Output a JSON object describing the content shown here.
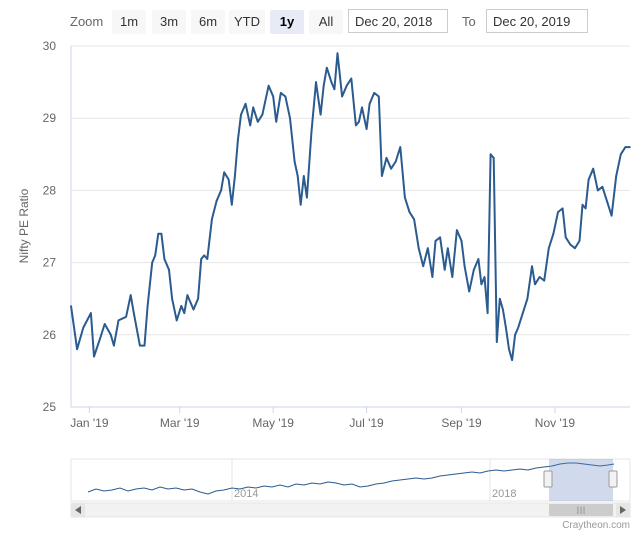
{
  "range_selector": {
    "zoom_label": "Zoom",
    "buttons": [
      "1m",
      "3m",
      "6m",
      "YTD",
      "1y",
      "All"
    ],
    "selected": "1y",
    "from_date": "Dec 20, 2018",
    "to_label": "To",
    "to_date": "Dec 20, 2019"
  },
  "navigator": {
    "year_labels": [
      "2014",
      "2018"
    ],
    "scroll_grip": "III"
  },
  "credits": "Craytheon.com",
  "chart_data": {
    "type": "line",
    "title": "",
    "xlabel": "",
    "ylabel": "Nifty PE Ratio",
    "ylim": [
      25,
      30
    ],
    "yticks": [
      25,
      26,
      27,
      28,
      29,
      30
    ],
    "xlim": [
      "2018-12-20",
      "2019-12-20"
    ],
    "xticks": [
      {
        "date": "2019-01-01",
        "label": "Jan '19"
      },
      {
        "date": "2019-03-01",
        "label": "Mar '19"
      },
      {
        "date": "2019-05-01",
        "label": "May '19"
      },
      {
        "date": "2019-07-01",
        "label": "Jul '19"
      },
      {
        "date": "2019-09-01",
        "label": "Sep '19"
      },
      {
        "date": "2019-11-01",
        "label": "Nov '19"
      }
    ],
    "line_color": "#2b5b8f",
    "grid": "horizontal",
    "series": [
      {
        "name": "",
        "points": [
          [
            "2018-12-20",
            26.4
          ],
          [
            "2018-12-24",
            25.8
          ],
          [
            "2018-12-28",
            26.1
          ],
          [
            "2019-01-02",
            26.3
          ],
          [
            "2019-01-04",
            25.7
          ],
          [
            "2019-01-08",
            25.95
          ],
          [
            "2019-01-11",
            26.15
          ],
          [
            "2019-01-15",
            26.0
          ],
          [
            "2019-01-17",
            25.85
          ],
          [
            "2019-01-20",
            26.2
          ],
          [
            "2019-01-25",
            26.25
          ],
          [
            "2019-01-28",
            26.55
          ],
          [
            "2019-01-30",
            26.3
          ],
          [
            "2019-02-03",
            25.85
          ],
          [
            "2019-02-06",
            25.85
          ],
          [
            "2019-02-08",
            26.4
          ],
          [
            "2019-02-11",
            27.0
          ],
          [
            "2019-02-13",
            27.1
          ],
          [
            "2019-02-15",
            27.4
          ],
          [
            "2019-02-17",
            27.4
          ],
          [
            "2019-02-19",
            27.05
          ],
          [
            "2019-02-22",
            26.9
          ],
          [
            "2019-02-24",
            26.5
          ],
          [
            "2019-02-27",
            26.2
          ],
          [
            "2019-03-02",
            26.4
          ],
          [
            "2019-03-04",
            26.3
          ],
          [
            "2019-03-06",
            26.55
          ],
          [
            "2019-03-10",
            26.35
          ],
          [
            "2019-03-13",
            26.5
          ],
          [
            "2019-03-15",
            27.05
          ],
          [
            "2019-03-17",
            27.1
          ],
          [
            "2019-03-19",
            27.05
          ],
          [
            "2019-03-22",
            27.6
          ],
          [
            "2019-03-25",
            27.85
          ],
          [
            "2019-03-28",
            28.0
          ],
          [
            "2019-03-30",
            28.25
          ],
          [
            "2019-04-02",
            28.15
          ],
          [
            "2019-04-04",
            27.8
          ],
          [
            "2019-04-06",
            28.2
          ],
          [
            "2019-04-08",
            28.7
          ],
          [
            "2019-04-10",
            29.05
          ],
          [
            "2019-04-13",
            29.2
          ],
          [
            "2019-04-16",
            28.9
          ],
          [
            "2019-04-18",
            29.15
          ],
          [
            "2019-04-21",
            28.95
          ],
          [
            "2019-04-24",
            29.05
          ],
          [
            "2019-04-28",
            29.45
          ],
          [
            "2019-05-01",
            29.3
          ],
          [
            "2019-05-03",
            28.95
          ],
          [
            "2019-05-06",
            29.35
          ],
          [
            "2019-05-09",
            29.3
          ],
          [
            "2019-05-12",
            29.0
          ],
          [
            "2019-05-15",
            28.4
          ],
          [
            "2019-05-17",
            28.2
          ],
          [
            "2019-05-19",
            27.8
          ],
          [
            "2019-05-21",
            28.2
          ],
          [
            "2019-05-23",
            27.9
          ],
          [
            "2019-05-26",
            28.8
          ],
          [
            "2019-05-29",
            29.5
          ],
          [
            "2019-06-01",
            29.05
          ],
          [
            "2019-06-03",
            29.45
          ],
          [
            "2019-06-05",
            29.7
          ],
          [
            "2019-06-08",
            29.5
          ],
          [
            "2019-06-10",
            29.4
          ],
          [
            "2019-06-12",
            29.9
          ],
          [
            "2019-06-15",
            29.3
          ],
          [
            "2019-06-18",
            29.45
          ],
          [
            "2019-06-21",
            29.55
          ],
          [
            "2019-06-24",
            28.9
          ],
          [
            "2019-06-26",
            28.95
          ],
          [
            "2019-06-28",
            29.15
          ],
          [
            "2019-07-01",
            28.85
          ],
          [
            "2019-07-03",
            29.2
          ],
          [
            "2019-07-06",
            29.35
          ],
          [
            "2019-07-09",
            29.3
          ],
          [
            "2019-07-11",
            28.2
          ],
          [
            "2019-07-14",
            28.45
          ],
          [
            "2019-07-17",
            28.3
          ],
          [
            "2019-07-20",
            28.4
          ],
          [
            "2019-07-23",
            28.6
          ],
          [
            "2019-07-26",
            27.9
          ],
          [
            "2019-07-29",
            27.7
          ],
          [
            "2019-08-01",
            27.6
          ],
          [
            "2019-08-04",
            27.2
          ],
          [
            "2019-08-07",
            26.95
          ],
          [
            "2019-08-10",
            27.2
          ],
          [
            "2019-08-13",
            26.8
          ],
          [
            "2019-08-15",
            27.3
          ],
          [
            "2019-08-18",
            27.35
          ],
          [
            "2019-08-21",
            26.9
          ],
          [
            "2019-08-23",
            27.2
          ],
          [
            "2019-08-26",
            26.8
          ],
          [
            "2019-08-29",
            27.45
          ],
          [
            "2019-09-01",
            27.3
          ],
          [
            "2019-09-03",
            26.95
          ],
          [
            "2019-09-06",
            26.6
          ],
          [
            "2019-09-09",
            26.9
          ],
          [
            "2019-09-12",
            27.05
          ],
          [
            "2019-09-14",
            26.7
          ],
          [
            "2019-09-16",
            26.8
          ],
          [
            "2019-09-18",
            26.3
          ],
          [
            "2019-09-20",
            28.5
          ],
          [
            "2019-09-22",
            28.45
          ],
          [
            "2019-09-24",
            25.9
          ],
          [
            "2019-09-26",
            26.5
          ],
          [
            "2019-09-28",
            26.35
          ],
          [
            "2019-09-30",
            26.1
          ],
          [
            "2019-10-02",
            25.8
          ],
          [
            "2019-10-04",
            25.65
          ],
          [
            "2019-10-06",
            26.0
          ],
          [
            "2019-10-08",
            26.1
          ],
          [
            "2019-10-11",
            26.3
          ],
          [
            "2019-10-14",
            26.5
          ],
          [
            "2019-10-17",
            26.95
          ],
          [
            "2019-10-19",
            26.7
          ],
          [
            "2019-10-22",
            26.8
          ],
          [
            "2019-10-25",
            26.75
          ],
          [
            "2019-10-28",
            27.2
          ],
          [
            "2019-10-31",
            27.4
          ],
          [
            "2019-11-03",
            27.7
          ],
          [
            "2019-11-06",
            27.75
          ],
          [
            "2019-11-08",
            27.35
          ],
          [
            "2019-11-11",
            27.25
          ],
          [
            "2019-11-14",
            27.2
          ],
          [
            "2019-11-17",
            27.3
          ],
          [
            "2019-11-19",
            27.8
          ],
          [
            "2019-11-21",
            27.75
          ],
          [
            "2019-11-23",
            28.15
          ],
          [
            "2019-11-26",
            28.3
          ],
          [
            "2019-11-29",
            28.0
          ],
          [
            "2019-12-02",
            28.05
          ],
          [
            "2019-12-05",
            27.85
          ],
          [
            "2019-12-08",
            27.65
          ],
          [
            "2019-12-11",
            28.2
          ],
          [
            "2019-12-14",
            28.5
          ],
          [
            "2019-12-17",
            28.6
          ],
          [
            "2019-12-20",
            28.6
          ]
        ]
      }
    ]
  }
}
